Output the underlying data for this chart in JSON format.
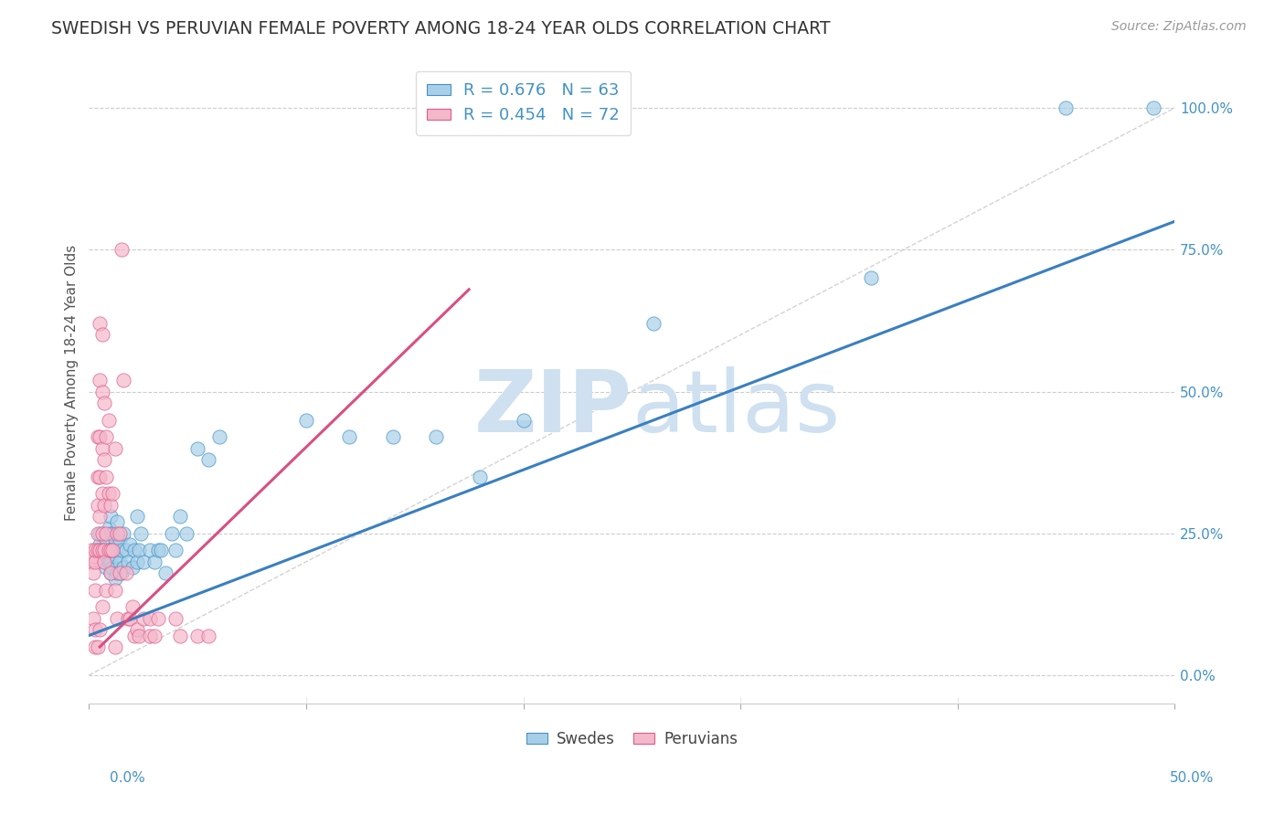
{
  "title": "SWEDISH VS PERUVIAN FEMALE POVERTY AMONG 18-24 YEAR OLDS CORRELATION CHART",
  "source": "Source: ZipAtlas.com",
  "ylabel": "Female Poverty Among 18-24 Year Olds",
  "ytick_labels": [
    "0.0%",
    "25.0%",
    "50.0%",
    "75.0%",
    "100.0%"
  ],
  "ytick_values": [
    0.0,
    0.25,
    0.5,
    0.75,
    1.0
  ],
  "xtick_labels_bottom": [
    "0.0%",
    "50.0%"
  ],
  "xlim": [
    0.0,
    0.5
  ],
  "ylim": [
    -0.05,
    1.08
  ],
  "swedish_R": 0.676,
  "swedish_N": 63,
  "peruvian_R": 0.454,
  "peruvian_N": 72,
  "swedish_color": "#a8cfe8",
  "peruvian_color": "#f4b8cb",
  "swedish_edge_color": "#4292c6",
  "peruvian_edge_color": "#e05a8a",
  "swedish_line_color": "#3a7fc1",
  "peruvian_line_color": "#d94f82",
  "diagonal_color": "#c8c8c8",
  "background_color": "#ffffff",
  "watermark_color": "#cfe0f0",
  "legend_label_swedish": "Swedes",
  "legend_label_peruvian": "Peruvians",
  "swedish_line_x0": 0.0,
  "swedish_line_y0": 0.07,
  "swedish_line_x1": 0.5,
  "swedish_line_y1": 0.8,
  "peruvian_line_x0": 0.005,
  "peruvian_line_y0": 0.05,
  "peruvian_line_x1": 0.175,
  "peruvian_line_y1": 0.68,
  "swedish_scatter_x": [
    0.005,
    0.005,
    0.005,
    0.007,
    0.007,
    0.008,
    0.008,
    0.008,
    0.009,
    0.009,
    0.009,
    0.01,
    0.01,
    0.01,
    0.01,
    0.01,
    0.011,
    0.011,
    0.011,
    0.012,
    0.012,
    0.012,
    0.013,
    0.013,
    0.013,
    0.014,
    0.014,
    0.015,
    0.015,
    0.016,
    0.016,
    0.017,
    0.018,
    0.019,
    0.02,
    0.021,
    0.022,
    0.022,
    0.023,
    0.024,
    0.025,
    0.028,
    0.03,
    0.032,
    0.033,
    0.035,
    0.038,
    0.04,
    0.042,
    0.045,
    0.05,
    0.055,
    0.06,
    0.1,
    0.12,
    0.14,
    0.16,
    0.18,
    0.2,
    0.26,
    0.36,
    0.45,
    0.49
  ],
  "swedish_scatter_y": [
    0.22,
    0.23,
    0.25,
    0.2,
    0.22,
    0.19,
    0.21,
    0.24,
    0.2,
    0.22,
    0.26,
    0.18,
    0.2,
    0.22,
    0.25,
    0.28,
    0.19,
    0.22,
    0.25,
    0.17,
    0.21,
    0.24,
    0.18,
    0.22,
    0.27,
    0.2,
    0.24,
    0.18,
    0.22,
    0.19,
    0.25,
    0.22,
    0.2,
    0.23,
    0.19,
    0.22,
    0.2,
    0.28,
    0.22,
    0.25,
    0.2,
    0.22,
    0.2,
    0.22,
    0.22,
    0.18,
    0.25,
    0.22,
    0.28,
    0.25,
    0.4,
    0.38,
    0.42,
    0.45,
    0.42,
    0.42,
    0.42,
    0.35,
    0.45,
    0.62,
    0.7,
    1.0,
    1.0
  ],
  "peruvian_scatter_x": [
    0.001,
    0.001,
    0.002,
    0.002,
    0.002,
    0.003,
    0.003,
    0.003,
    0.003,
    0.003,
    0.004,
    0.004,
    0.004,
    0.004,
    0.004,
    0.004,
    0.005,
    0.005,
    0.005,
    0.005,
    0.005,
    0.005,
    0.005,
    0.006,
    0.006,
    0.006,
    0.006,
    0.006,
    0.006,
    0.006,
    0.007,
    0.007,
    0.007,
    0.007,
    0.007,
    0.008,
    0.008,
    0.008,
    0.008,
    0.009,
    0.009,
    0.009,
    0.01,
    0.01,
    0.01,
    0.011,
    0.011,
    0.012,
    0.012,
    0.012,
    0.013,
    0.013,
    0.014,
    0.014,
    0.015,
    0.016,
    0.017,
    0.018,
    0.019,
    0.02,
    0.021,
    0.022,
    0.023,
    0.025,
    0.028,
    0.028,
    0.03,
    0.032,
    0.04,
    0.042,
    0.05,
    0.055
  ],
  "peruvian_scatter_y": [
    0.2,
    0.22,
    0.18,
    0.21,
    0.1,
    0.2,
    0.22,
    0.15,
    0.08,
    0.05,
    0.25,
    0.3,
    0.35,
    0.42,
    0.22,
    0.05,
    0.22,
    0.28,
    0.35,
    0.42,
    0.52,
    0.62,
    0.08,
    0.25,
    0.32,
    0.4,
    0.5,
    0.6,
    0.12,
    0.22,
    0.22,
    0.3,
    0.38,
    0.48,
    0.2,
    0.25,
    0.35,
    0.15,
    0.42,
    0.22,
    0.32,
    0.45,
    0.22,
    0.3,
    0.18,
    0.22,
    0.32,
    0.4,
    0.05,
    0.15,
    0.25,
    0.1,
    0.18,
    0.25,
    0.75,
    0.52,
    0.18,
    0.1,
    0.1,
    0.12,
    0.07,
    0.08,
    0.07,
    0.1,
    0.07,
    0.1,
    0.07,
    0.1,
    0.1,
    0.07,
    0.07,
    0.07
  ]
}
